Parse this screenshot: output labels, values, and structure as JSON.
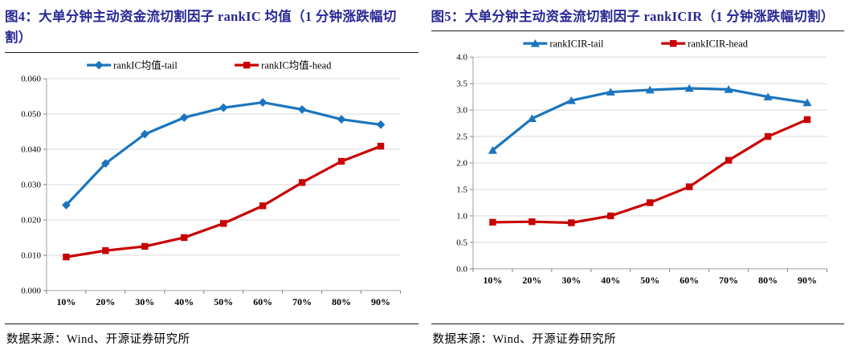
{
  "figures": [
    {
      "title": "图4：大单分钟主动资金流切割因子 rankIC 均值（1 分钟涨跌幅切割）",
      "source": "数据来源：Wind、开源证券研究所",
      "title_color": "#282896"
    },
    {
      "title": "图5：大单分钟主动资金流切割因子 rankICIR（1 分钟涨跌幅切割）",
      "source": "数据来源：Wind、开源证券研究所",
      "title_color": "#282896"
    }
  ],
  "colors": {
    "series_blue": "#1B75BE",
    "series_red": "#C80000",
    "gridline": "#D9D9D9",
    "axis": "#A0A0A0",
    "tick": "#7F7F7F",
    "title_navy": "#282896"
  },
  "chart_data": [
    {
      "type": "line",
      "title": "图4：大单分钟主动资金流切割因子 rankIC 均值（1 分钟涨跌幅切割）",
      "categories": [
        "10%",
        "20%",
        "30%",
        "40%",
        "50%",
        "60%",
        "70%",
        "80%",
        "90%"
      ],
      "series": [
        {
          "name": "rankIC均值-tail",
          "color": "#1B75BE",
          "marker": "diamond",
          "values": [
            0.0242,
            0.036,
            0.0443,
            0.049,
            0.0518,
            0.0533,
            0.0513,
            0.0485,
            0.047
          ]
        },
        {
          "name": "rankIC均值-head",
          "color": "#C80000",
          "marker": "square",
          "values": [
            0.0095,
            0.0113,
            0.0125,
            0.015,
            0.019,
            0.024,
            0.0306,
            0.0366,
            0.0409
          ]
        }
      ],
      "xlabel": "",
      "ylabel": "",
      "ylim": [
        0,
        0.06
      ],
      "yticks": [
        0,
        0.01,
        0.02,
        0.03,
        0.04,
        0.05,
        0.06
      ],
      "ytick_labels": [
        "0.000",
        "0.010",
        "0.020",
        "0.030",
        "0.040",
        "0.050",
        "0.060"
      ],
      "grid": true,
      "legend_position": "top"
    },
    {
      "type": "line",
      "title": "图5：大单分钟主动资金流切割因子 rankICIR（1 分钟涨跌幅切割）",
      "categories": [
        "10%",
        "20%",
        "30%",
        "40%",
        "50%",
        "60%",
        "70%",
        "80%",
        "90%"
      ],
      "series": [
        {
          "name": "rankICIR-tail",
          "color": "#1B75BE",
          "marker": "triangle",
          "values": [
            2.24,
            2.84,
            3.18,
            3.34,
            3.38,
            3.41,
            3.39,
            3.25,
            3.14
          ]
        },
        {
          "name": "rankICIR-head",
          "color": "#C80000",
          "marker": "square",
          "values": [
            0.88,
            0.89,
            0.87,
            1.0,
            1.25,
            1.55,
            2.05,
            2.5,
            2.82
          ]
        }
      ],
      "xlabel": "",
      "ylabel": "",
      "ylim": [
        0,
        4.0
      ],
      "yticks": [
        0,
        0.5,
        1.0,
        1.5,
        2.0,
        2.5,
        3.0,
        3.5,
        4.0
      ],
      "ytick_labels": [
        "0.0",
        "0.5",
        "1.0",
        "1.5",
        "2.0",
        "2.5",
        "3.0",
        "3.5",
        "4.0"
      ],
      "grid": true,
      "legend_position": "top"
    }
  ]
}
